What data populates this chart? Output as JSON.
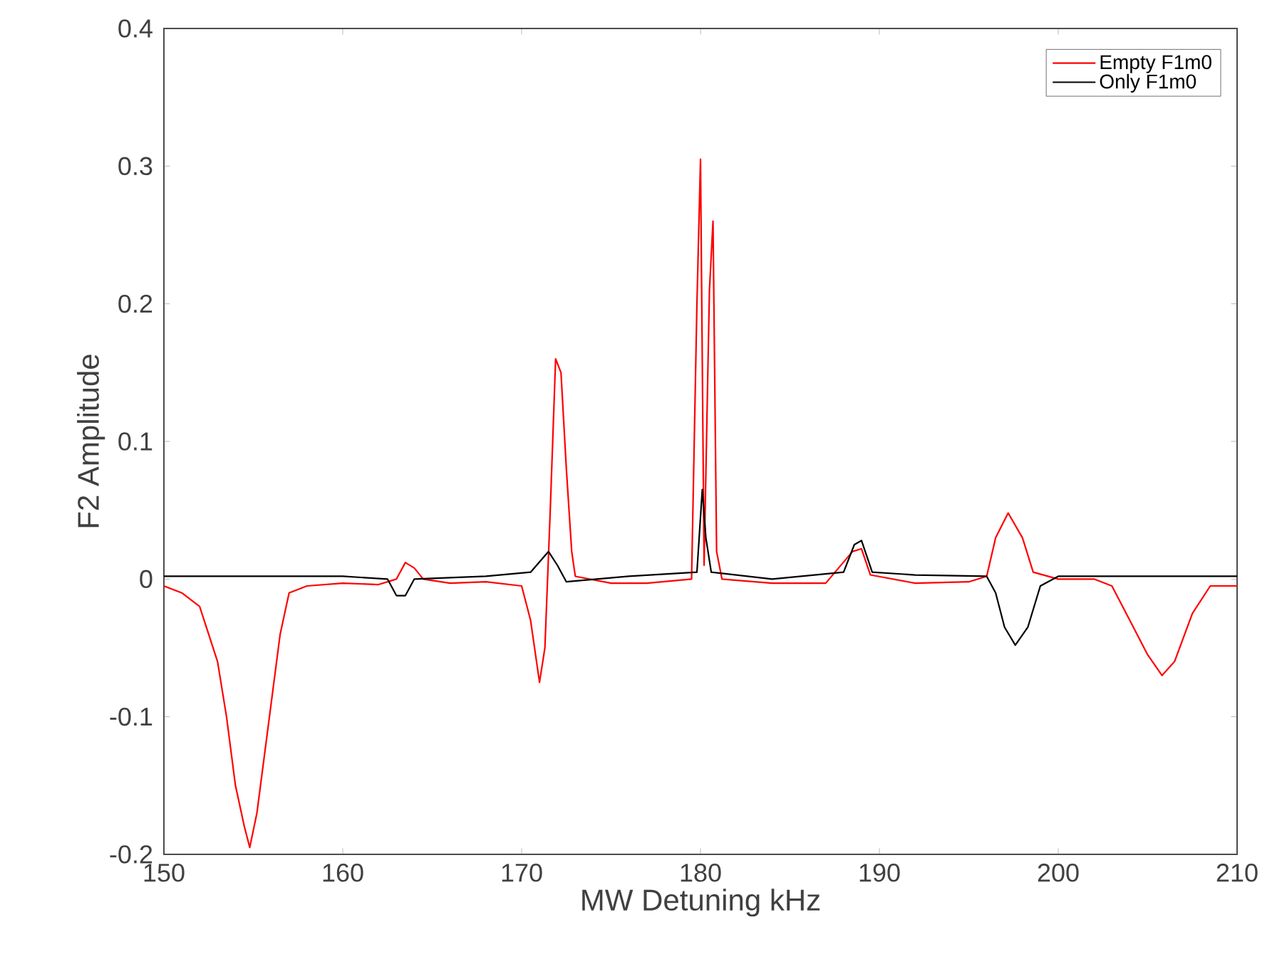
{
  "chart_data": {
    "type": "line",
    "xlabel": "MW Detuning kHz",
    "ylabel": "F2 Amplitude",
    "xlim": [
      150,
      210
    ],
    "ylim": [
      -0.2,
      0.4
    ],
    "xticks": [
      150,
      160,
      170,
      180,
      190,
      200,
      210
    ],
    "yticks": [
      -0.2,
      -0.1,
      0,
      0.1,
      0.2,
      0.3,
      0.4
    ],
    "legend": "top right",
    "grid": false,
    "marker": "none",
    "line_style": "solid",
    "series": [
      {
        "name": "Empty F1m0",
        "color": "#ff0000",
        "x": [
          150,
          151,
          152,
          152.5,
          153,
          153.5,
          154,
          154.5,
          154.8,
          155.2,
          155.6,
          156,
          156.5,
          157,
          158,
          160,
          162,
          163,
          163.5,
          164,
          164.5,
          166,
          168,
          170,
          170.5,
          171,
          171.3,
          171.6,
          171.9,
          172.2,
          172.5,
          172.8,
          173,
          175,
          177,
          179.5,
          179.8,
          180,
          180.2,
          180.5,
          180.7,
          180.9,
          181.2,
          184,
          187,
          188.5,
          189,
          189.5,
          192,
          195,
          196,
          196.5,
          197.2,
          198,
          198.6,
          200,
          202,
          203,
          204,
          205,
          205.8,
          206.5,
          207.5,
          208.5,
          210
        ],
        "values": [
          -0.005,
          -0.01,
          -0.02,
          -0.04,
          -0.06,
          -0.1,
          -0.15,
          -0.18,
          -0.195,
          -0.17,
          -0.13,
          -0.09,
          -0.04,
          -0.01,
          -0.005,
          -0.003,
          -0.004,
          0.0,
          0.012,
          0.008,
          0.0,
          -0.003,
          -0.002,
          -0.005,
          -0.03,
          -0.075,
          -0.05,
          0.05,
          0.16,
          0.15,
          0.08,
          0.02,
          0.002,
          -0.003,
          -0.003,
          0.0,
          0.2,
          0.305,
          0.01,
          0.21,
          0.26,
          0.02,
          0.0,
          -0.003,
          -0.003,
          0.02,
          0.022,
          0.003,
          -0.003,
          -0.002,
          0.002,
          0.03,
          0.048,
          0.03,
          0.005,
          0.0,
          0.0,
          -0.005,
          -0.03,
          -0.055,
          -0.07,
          -0.06,
          -0.025,
          -0.005,
          -0.005
        ]
      },
      {
        "name": "Only F1m0",
        "color": "#000000",
        "x": [
          150,
          155,
          160,
          162.5,
          163,
          163.5,
          164,
          168,
          170.5,
          171.5,
          172,
          172.5,
          176,
          179.8,
          180.1,
          180.3,
          180.6,
          184,
          188,
          188.6,
          189,
          189.6,
          192,
          196,
          196.5,
          197,
          197.6,
          198.3,
          199,
          200,
          205,
          210
        ],
        "values": [
          0.002,
          0.002,
          0.002,
          0.0,
          -0.012,
          -0.012,
          0.0,
          0.002,
          0.005,
          0.02,
          0.01,
          -0.002,
          0.002,
          0.005,
          0.065,
          0.03,
          0.005,
          0.0,
          0.005,
          0.025,
          0.028,
          0.005,
          0.003,
          0.002,
          -0.01,
          -0.035,
          -0.048,
          -0.035,
          -0.005,
          0.002,
          0.002,
          0.002
        ]
      }
    ]
  }
}
